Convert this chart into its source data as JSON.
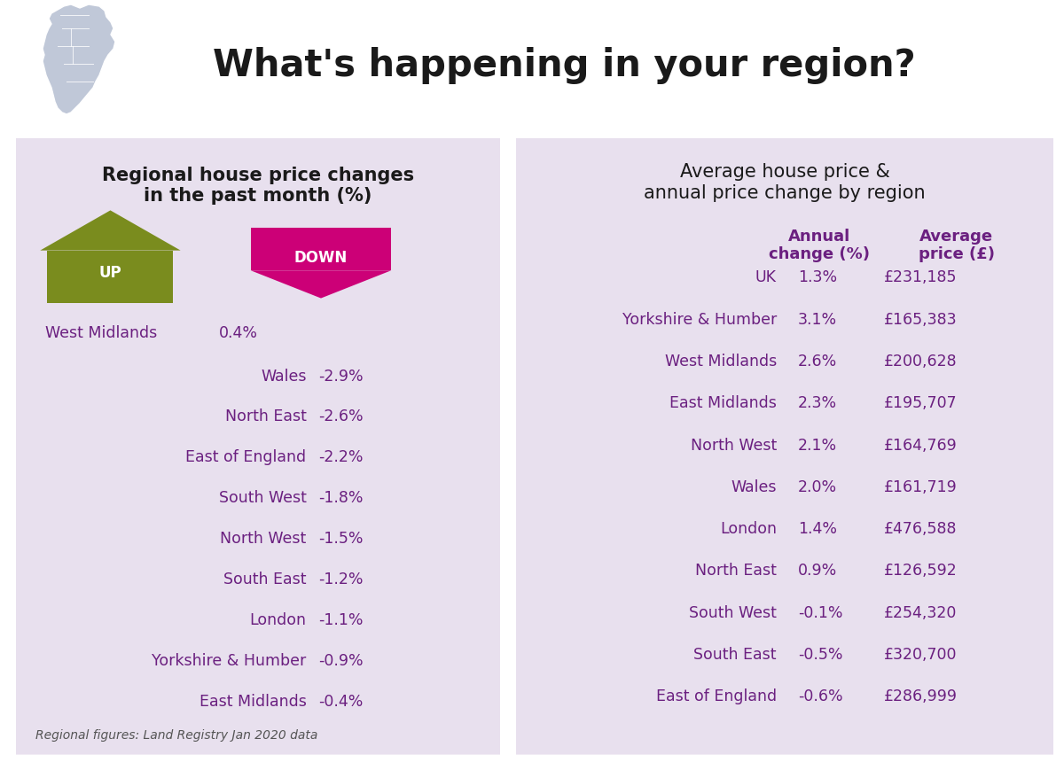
{
  "title": "What's happening in your region?",
  "title_color": "#1a1a1a",
  "bg_color": "#ffffff",
  "panel_bg": "#e8e0ee",
  "left_panel_title": "Regional house price changes\nin the past month (%)",
  "left_panel_title_color": "#1a1a1a",
  "up_color": "#7a8c1e",
  "down_color": "#cc0077",
  "up_label": "UP",
  "down_label": "DOWN",
  "up_region": "West Midlands",
  "up_value": "0.4%",
  "down_regions": [
    "Wales",
    "North East",
    "East of England",
    "South West",
    "North West",
    "South East",
    "London",
    "Yorkshire & Humber",
    "East Midlands"
  ],
  "down_values": [
    "-2.9%",
    "-2.6%",
    "-2.2%",
    "-1.8%",
    "-1.5%",
    "-1.2%",
    "-1.1%",
    "-0.9%",
    "-0.4%"
  ],
  "footnote": "Regional figures: Land Registry Jan 2020 data",
  "right_panel_title": "Average house price &\nannual price change by region",
  "right_panel_title_color": "#1a1a1a",
  "col1_header": "Annual\nchange (%)",
  "col2_header": "Average\nprice (£)",
  "header_color": "#6b2080",
  "table_regions": [
    "UK",
    "Yorkshire & Humber",
    "West Midlands",
    "East Midlands",
    "North West",
    "Wales",
    "London",
    "North East",
    "South West",
    "South East",
    "East of England"
  ],
  "table_annual": [
    "1.3%",
    "3.1%",
    "2.6%",
    "2.3%",
    "2.1%",
    "2.0%",
    "1.4%",
    "0.9%",
    "-0.1%",
    "-0.5%",
    "-0.6%"
  ],
  "table_price": [
    "£231,185",
    "£165,383",
    "£200,628",
    "£195,707",
    "£164,769",
    "£161,719",
    "£476,588",
    "£126,592",
    "£254,320",
    "£320,700",
    "£286,999"
  ],
  "table_text_color": "#6b2080",
  "region_text_color": "#6b2080",
  "value_text_color": "#6b2080",
  "footnote_color": "#555555",
  "map_color": "#c0c8d8"
}
